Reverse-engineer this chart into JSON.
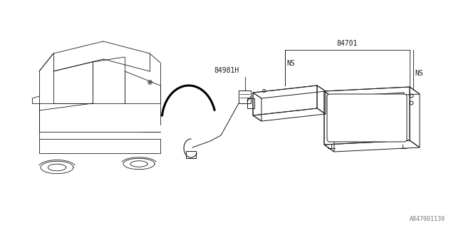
{
  "background_color": "#ffffff",
  "line_color": "#1a1a1a",
  "text_color": "#1a1a1a",
  "label_84701": "84701",
  "label_84981H": "84981H",
  "label_NS1": "NS",
  "label_NS2": "NS",
  "label_footer": "A847001139",
  "figsize": [
    6.4,
    3.2
  ],
  "dpi": 100
}
